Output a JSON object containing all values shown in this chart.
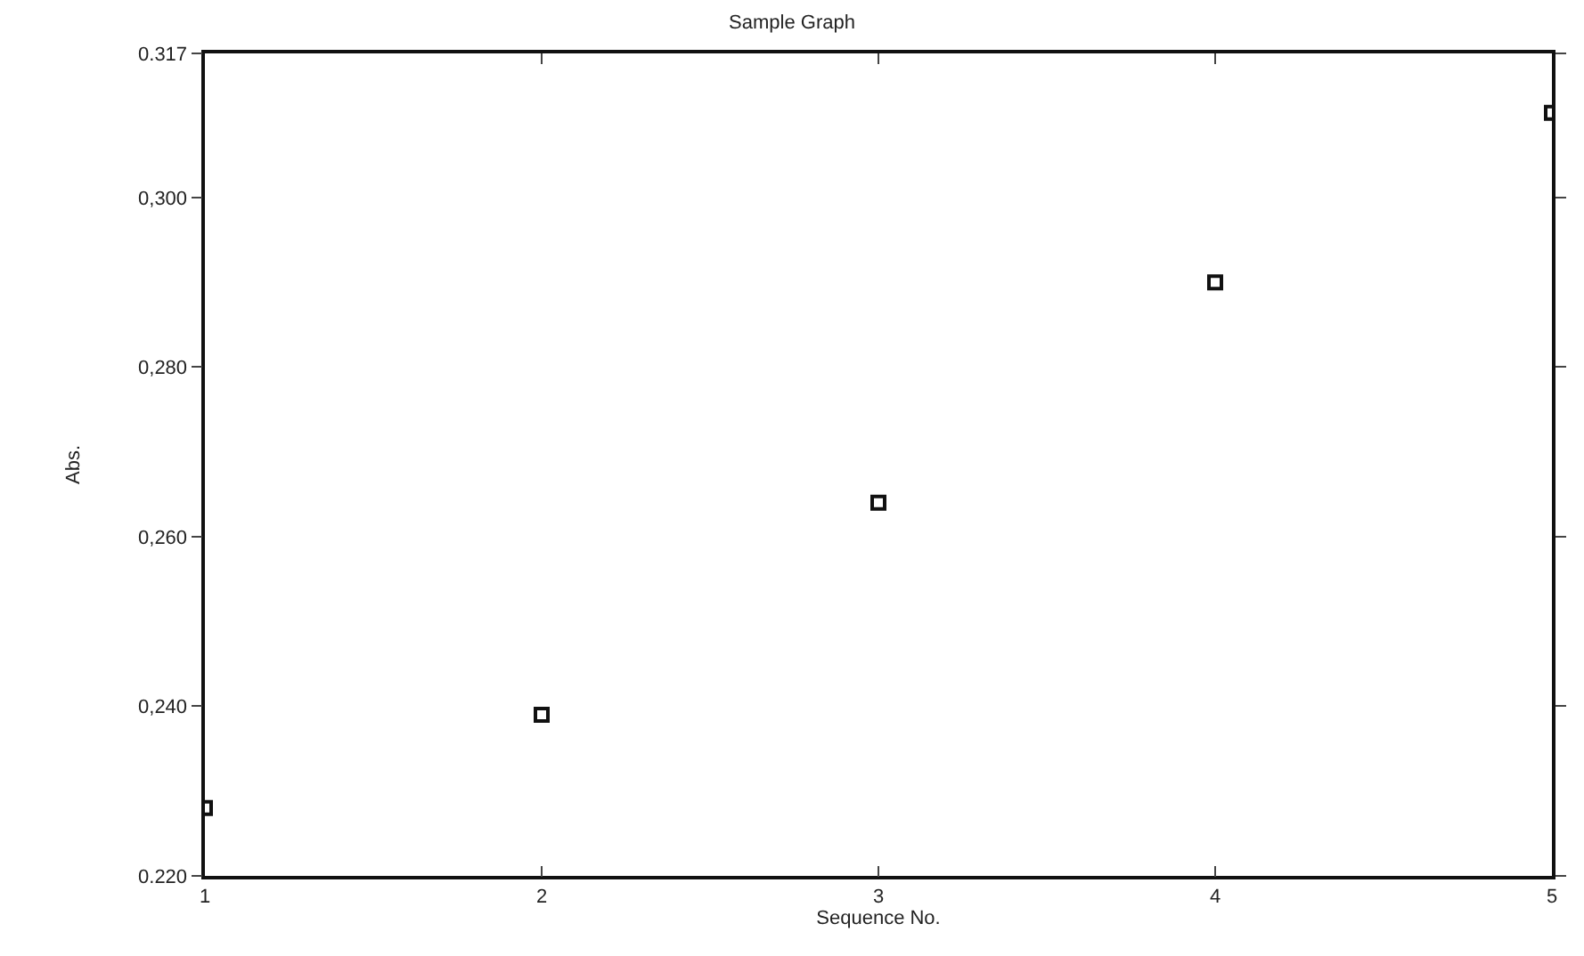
{
  "chart_data": {
    "type": "scatter",
    "title": "Sample Graph",
    "xlabel": "Sequence No.",
    "ylabel": "Abs.",
    "x": [
      1,
      2,
      3,
      4,
      5
    ],
    "values": [
      0.228,
      0.239,
      0.264,
      0.29,
      0.31
    ],
    "color": "#111111",
    "marker": "square",
    "grid": false,
    "xlim": [
      1,
      5
    ],
    "xticks": [
      1,
      2,
      3,
      4,
      5
    ],
    "ylim": [
      0.22,
      0.317
    ],
    "yticks": [
      {
        "value": 0.22,
        "label": "0.220"
      },
      {
        "value": 0.24,
        "label": "0,240"
      },
      {
        "value": 0.26,
        "label": "0,260"
      },
      {
        "value": 0.28,
        "label": "0,280"
      },
      {
        "value": 0.3,
        "label": "0,300"
      },
      0.317
    ]
  }
}
